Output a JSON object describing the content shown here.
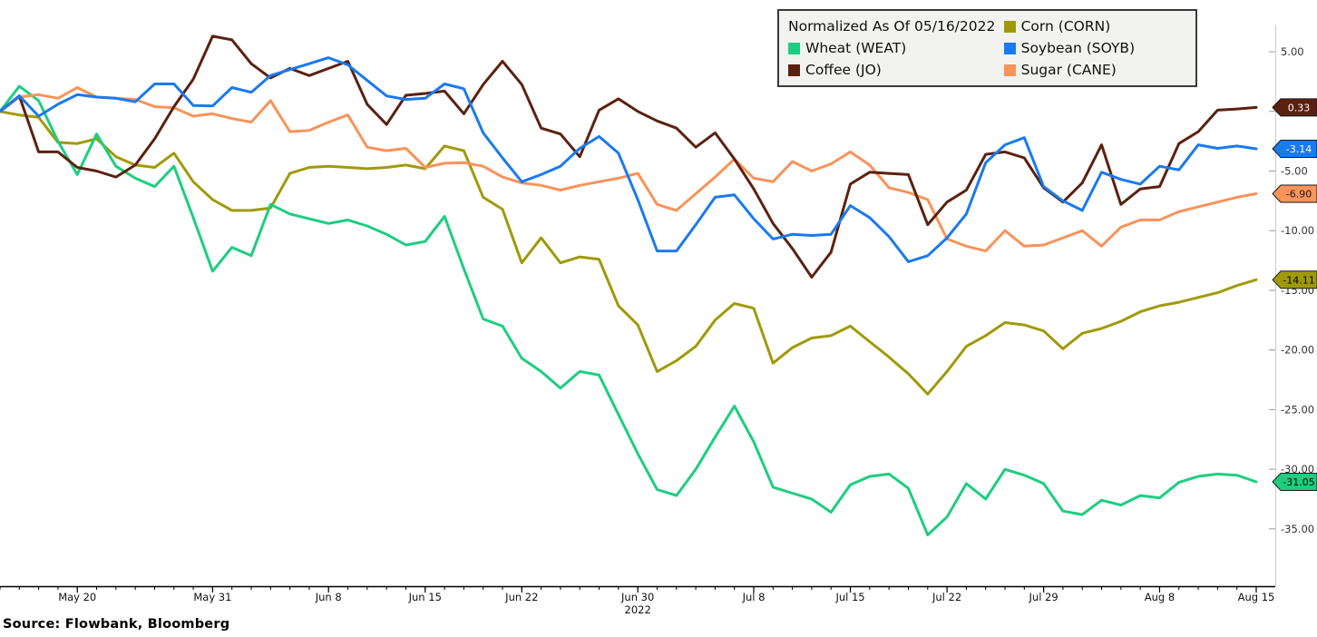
{
  "source_note": "Source: Flowbank, Bloomberg",
  "legend": {
    "title": "Normalized As Of 05/16/2022",
    "items": [
      {
        "label": "Corn (CORN)",
        "color": "#a09a0a"
      },
      {
        "label": "Wheat (WEAT)",
        "color": "#1dce80"
      },
      {
        "label": "Soybean (SOYB)",
        "color": "#1a7af0"
      },
      {
        "label": "Coffee (JO)",
        "color": "#5b2110"
      },
      {
        "label": "Sugar (CANE)",
        "color": "#f8935a"
      }
    ]
  },
  "chart_data": {
    "type": "line",
    "title": "Normalized As Of 05/16/2022",
    "grid": "off",
    "legend_position": "top-right",
    "x_axis": {
      "n_points": 66,
      "year_label": "2022",
      "year_label_index": 33,
      "tick_labels": [
        {
          "label": "May 20",
          "index": 4
        },
        {
          "label": "May 31",
          "index": 11
        },
        {
          "label": "Jun 8",
          "index": 17
        },
        {
          "label": "Jun 15",
          "index": 22
        },
        {
          "label": "Jun 22",
          "index": 27
        },
        {
          "label": "Jun 30",
          "index": 33
        },
        {
          "label": "Jul 8",
          "index": 39
        },
        {
          "label": "Jul 15",
          "index": 44
        },
        {
          "label": "Jul 22",
          "index": 49
        },
        {
          "label": "Jul 29",
          "index": 54
        },
        {
          "label": "Aug 8",
          "index": 60
        },
        {
          "label": "Aug 15",
          "index": 65
        }
      ]
    },
    "y_axis": {
      "min": -35,
      "max": 5,
      "tick_step": 5,
      "tick_values": [
        5,
        0,
        -5,
        -10,
        -15,
        -20,
        -25,
        -30,
        -35
      ],
      "tick_labels": [
        "5.00",
        "0.00",
        "-5.00",
        "-10.00",
        "-15.00",
        "-20.00",
        "-25.00",
        "-30.00",
        "-35.00"
      ]
    },
    "series": [
      {
        "name": "Corn (CORN)",
        "ticker": "CORN",
        "color": "#a09a0a",
        "last_value_label": "-14.11",
        "badge_text_color": "#000000",
        "values": [
          0,
          -0.3,
          -0.5,
          -2.6,
          -2.7,
          -2.3,
          -3.8,
          -4.5,
          -4.7,
          -3.5,
          -5.9,
          -7.4,
          -8.3,
          -8.3,
          -8.1,
          -5.2,
          -4.7,
          -4.6,
          -4.7,
          -4.8,
          -4.7,
          -4.5,
          -4.8,
          -2.9,
          -3.3,
          -7.2,
          -8.2,
          -12.7,
          -10.6,
          -12.7,
          -12.2,
          -12.4,
          -16.3,
          -17.9,
          -21.8,
          -20.9,
          -19.7,
          -17.5,
          -16.1,
          -16.5,
          -21.1,
          -19.8,
          -19.0,
          -18.8,
          -18.0,
          -19.3,
          -20.6,
          -22.0,
          -23.7,
          -21.8,
          -19.7,
          -18.8,
          -17.7,
          -17.9,
          -18.4,
          -19.9,
          -18.6,
          -18.2,
          -17.6,
          -16.8,
          -16.3,
          -16.0,
          -15.6,
          -15.2,
          -14.6,
          -14.11
        ]
      },
      {
        "name": "Wheat (WEAT)",
        "ticker": "WEAT",
        "color": "#1dce80",
        "last_value_label": "-31.05",
        "badge_text_color": "#000000",
        "values": [
          0,
          2.1,
          0.9,
          -2.5,
          -5.3,
          -1.9,
          -4.6,
          -5.6,
          -6.3,
          -4.6,
          -8.9,
          -13.4,
          -11.4,
          -12.1,
          -7.8,
          -8.6,
          -9.0,
          -9.4,
          -9.1,
          -9.6,
          -10.3,
          -11.2,
          -10.9,
          -8.8,
          -13.2,
          -17.4,
          -18.0,
          -20.7,
          -21.8,
          -23.2,
          -21.8,
          -22.1,
          -25.4,
          -28.7,
          -31.7,
          -32.2,
          -30.0,
          -27.3,
          -24.7,
          -27.7,
          -31.5,
          -32.0,
          -32.5,
          -33.6,
          -31.3,
          -30.6,
          -30.4,
          -31.6,
          -35.5,
          -34.0,
          -31.2,
          -32.5,
          -30.0,
          -30.5,
          -31.2,
          -33.5,
          -33.8,
          -32.6,
          -33.0,
          -32.2,
          -32.4,
          -31.1,
          -30.6,
          -30.4,
          -30.5,
          -31.05
        ]
      },
      {
        "name": "Sugar (CANE)",
        "ticker": "CANE",
        "color": "#f8935a",
        "last_value_label": "-6.90",
        "badge_text_color": "#1a1a1a",
        "values": [
          0,
          1.2,
          1.4,
          1.1,
          2.0,
          1.2,
          1.1,
          1.0,
          0.4,
          0.3,
          -0.4,
          -0.2,
          -0.6,
          -0.9,
          0.9,
          -1.7,
          -1.6,
          -0.9,
          -0.3,
          -3.0,
          -3.3,
          -3.1,
          -4.7,
          -4.35,
          -4.3,
          -4.6,
          -5.5,
          -6.0,
          -6.2,
          -6.6,
          -6.2,
          -5.9,
          -5.6,
          -5.2,
          -7.8,
          -8.3,
          -6.9,
          -5.5,
          -4.0,
          -5.6,
          -5.9,
          -4.2,
          -5.0,
          -4.4,
          -3.4,
          -4.5,
          -6.4,
          -6.8,
          -7.4,
          -10.7,
          -11.3,
          -11.7,
          -10.0,
          -11.3,
          -11.2,
          -10.6,
          -10.0,
          -11.3,
          -9.7,
          -9.1,
          -9.1,
          -8.4,
          -8.0,
          -7.6,
          -7.2,
          -6.9
        ]
      },
      {
        "name": "Coffee (JO)",
        "ticker": "JO",
        "color": "#5b2110",
        "last_value_label": "0.33",
        "badge_text_color": "#ffffff",
        "values": [
          0,
          1.3,
          -3.4,
          -3.4,
          -4.7,
          -5.0,
          -5.5,
          -4.5,
          -2.3,
          0.4,
          2.7,
          6.3,
          6.0,
          4.0,
          2.8,
          3.6,
          3.0,
          3.6,
          4.2,
          0.6,
          -1.1,
          1.35,
          1.5,
          1.7,
          -0.2,
          2.25,
          4.2,
          2.25,
          -1.4,
          -1.9,
          -3.8,
          0.1,
          1.05,
          0.0,
          -0.8,
          -1.4,
          -3.0,
          -1.8,
          -4.0,
          -6.5,
          -9.4,
          -11.5,
          -13.9,
          -11.8,
          -6.1,
          -5.1,
          -5.2,
          -5.3,
          -9.5,
          -7.6,
          -6.6,
          -3.6,
          -3.4,
          -3.9,
          -6.4,
          -7.6,
          -6.0,
          -2.8,
          -7.8,
          -6.5,
          -6.3,
          -2.7,
          -1.7,
          0.1,
          0.2,
          0.33
        ]
      },
      {
        "name": "Soybean (SOYB)",
        "ticker": "SOYB",
        "color": "#1a7af0",
        "last_value_label": "-3.14",
        "badge_text_color": "#ffffff",
        "values": [
          0,
          1.3,
          -0.4,
          0.6,
          1.4,
          1.2,
          1.1,
          0.8,
          2.3,
          2.3,
          0.5,
          0.45,
          2.0,
          1.6,
          3.0,
          3.5,
          4.0,
          4.5,
          3.9,
          2.6,
          1.3,
          1.0,
          1.1,
          2.3,
          1.9,
          -1.8,
          -3.9,
          -5.9,
          -5.3,
          -4.6,
          -3.1,
          -2.1,
          -3.5,
          -7.4,
          -11.7,
          -11.7,
          -9.5,
          -7.2,
          -7.0,
          -9.0,
          -10.7,
          -10.3,
          -10.4,
          -10.3,
          -7.9,
          -8.9,
          -10.5,
          -12.6,
          -12.1,
          -10.6,
          -8.6,
          -4.3,
          -2.8,
          -2.2,
          -6.3,
          -7.5,
          -8.3,
          -5.1,
          -5.7,
          -6.1,
          -4.6,
          -4.9,
          -2.8,
          -3.1,
          -2.9,
          -3.14
        ]
      }
    ]
  }
}
